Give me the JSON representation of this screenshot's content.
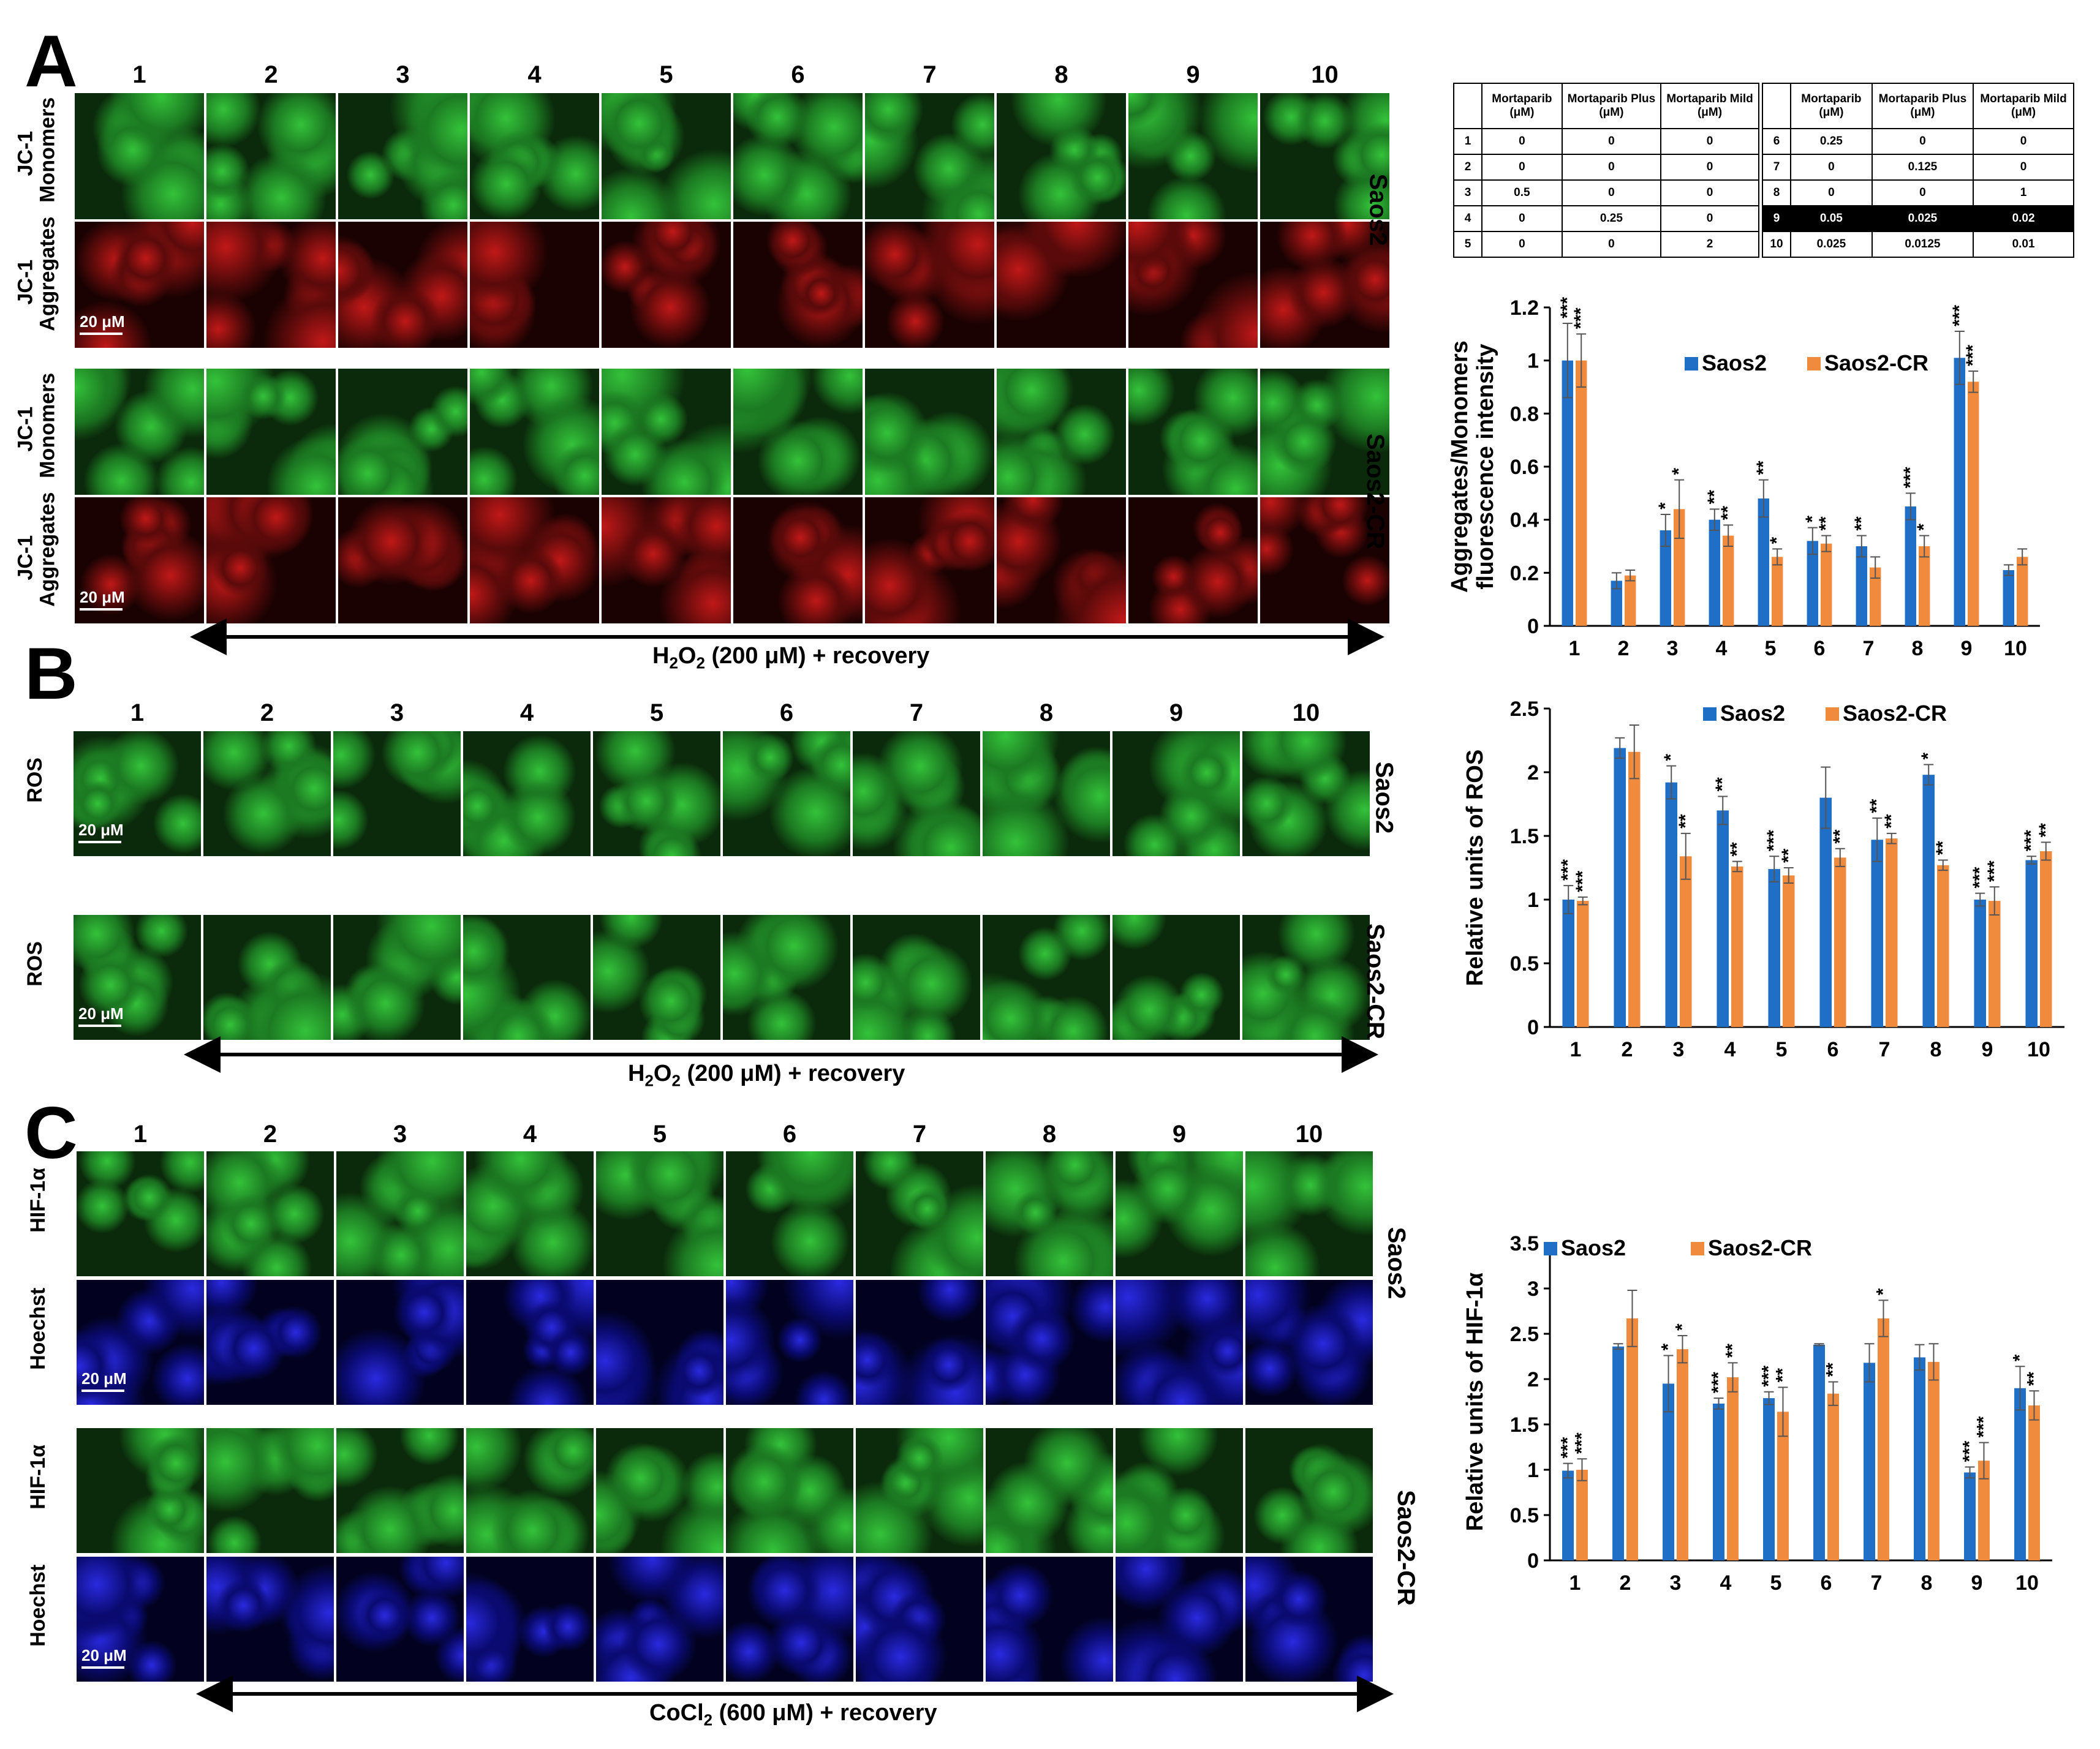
{
  "panels": {
    "A": {
      "letter": "A",
      "columns": [
        "1",
        "2",
        "3",
        "4",
        "5",
        "6",
        "7",
        "8",
        "9",
        "10"
      ],
      "rows": [
        {
          "label": "JC-1\nMonomers",
          "color": "green"
        },
        {
          "label": "JC-1\nAggregates",
          "color": "red"
        },
        {
          "label": "JC-1\nMonomers",
          "color": "green"
        },
        {
          "label": "JC-1\nAggregates",
          "color": "red"
        }
      ],
      "cell_lines": [
        "Saos2",
        "Saos2-CR"
      ],
      "scale_bar": "20 μM",
      "treatment": "H2O2 (200 μM) + recovery",
      "treatment_parts": {
        "pre": "H",
        "sub1": "2",
        "mid": "O",
        "sub2": "2",
        "post": " (200 μM) + recovery"
      }
    },
    "B": {
      "letter": "B",
      "columns": [
        "1",
        "2",
        "3",
        "4",
        "5",
        "6",
        "7",
        "8",
        "9",
        "10"
      ],
      "rows": [
        {
          "label": "ROS",
          "color": "green"
        },
        {
          "label": "ROS",
          "color": "green"
        }
      ],
      "cell_lines": [
        "Saos2",
        "Saos2-CR"
      ],
      "scale_bar": "20 μM",
      "treatment_parts": {
        "pre": "H",
        "sub1": "2",
        "mid": "O",
        "sub2": "2",
        "post": " (200 μM) + recovery"
      }
    },
    "C": {
      "letter": "C",
      "columns": [
        "1",
        "2",
        "3",
        "4",
        "5",
        "6",
        "7",
        "8",
        "9",
        "10"
      ],
      "rows": [
        {
          "label": "HIF-1α",
          "color": "green"
        },
        {
          "label": "Hoechst",
          "color": "blue"
        },
        {
          "label": "HIF-1α",
          "color": "green"
        },
        {
          "label": "Hoechst",
          "color": "blue"
        }
      ],
      "cell_lines": [
        "Saos2",
        "Saos2-CR"
      ],
      "scale_bar": "20 μM",
      "treatment_parts": {
        "pre": "CoCl",
        "sub1": "2",
        "post": " (600 μM) + recovery"
      }
    }
  },
  "treatment_table": {
    "headers": [
      "Mortaparib (μM)",
      "Mortaparib Plus (μM)",
      "Mortaparib Mild (μM)"
    ],
    "left": [
      [
        "1",
        "0",
        "0",
        "0"
      ],
      [
        "2",
        "0",
        "0",
        "0"
      ],
      [
        "3",
        "0.5",
        "0",
        "0"
      ],
      [
        "4",
        "0",
        "0.25",
        "0"
      ],
      [
        "5",
        "0",
        "0",
        "2"
      ]
    ],
    "right": [
      [
        "6",
        "0.25",
        "0",
        "0"
      ],
      [
        "7",
        "0",
        "0.125",
        "0"
      ],
      [
        "8",
        "0",
        "0",
        "1"
      ],
      [
        "9",
        "0.05",
        "0.025",
        "0.02"
      ],
      [
        "10",
        "0.025",
        "0.0125",
        "0.01"
      ]
    ],
    "highlight_row": "9"
  },
  "colors": {
    "saos2": "#1f6fc6",
    "saos2cr": "#f08a3c",
    "green": "#1f8f2a",
    "red": "#9a1010",
    "blue": "#1818b0"
  },
  "chart_data": [
    {
      "type": "bar",
      "ylabel": "Aggregates/Monomers fluorescence intensity",
      "categories": [
        "1",
        "2",
        "3",
        "4",
        "5",
        "6",
        "7",
        "8",
        "9",
        "10"
      ],
      "ylim": [
        0,
        1.2
      ],
      "yticks": [
        "0",
        "0.2",
        "0.4",
        "0.6",
        "0.8",
        "1",
        "1.2"
      ],
      "legend_position": "top-center",
      "series": [
        {
          "name": "Saos2",
          "values": [
            1.0,
            0.17,
            0.36,
            0.4,
            0.48,
            0.32,
            0.3,
            0.45,
            1.01,
            0.21
          ],
          "errors": [
            0.14,
            0.03,
            0.06,
            0.04,
            0.07,
            0.05,
            0.04,
            0.05,
            0.1,
            0.02
          ],
          "stars": [
            "***",
            "",
            "*",
            "**",
            "**",
            "*",
            "**",
            "***",
            "***",
            ""
          ]
        },
        {
          "name": "Saos2-CR",
          "values": [
            1.0,
            0.19,
            0.44,
            0.34,
            0.26,
            0.31,
            0.22,
            0.3,
            0.92,
            0.26
          ],
          "errors": [
            0.1,
            0.02,
            0.11,
            0.04,
            0.03,
            0.03,
            0.04,
            0.04,
            0.04,
            0.03
          ],
          "stars": [
            "***",
            "",
            "*",
            "**",
            "*",
            "**",
            "",
            "*",
            "***",
            ""
          ]
        }
      ]
    },
    {
      "type": "bar",
      "ylabel": "Relative units of ROS",
      "categories": [
        "1",
        "2",
        "3",
        "4",
        "5",
        "6",
        "7",
        "8",
        "9",
        "10"
      ],
      "ylim": [
        0,
        2.5
      ],
      "yticks": [
        "0",
        "0.5",
        "1",
        "1.5",
        "2",
        "2.5"
      ],
      "legend_position": "top-center",
      "series": [
        {
          "name": "Saos2",
          "values": [
            1.0,
            2.19,
            1.92,
            1.7,
            1.24,
            1.8,
            1.47,
            1.98,
            1.0,
            1.31
          ],
          "errors": [
            0.11,
            0.08,
            0.13,
            0.11,
            0.1,
            0.24,
            0.17,
            0.08,
            0.05,
            0.03
          ],
          "stars": [
            "***",
            "",
            "*",
            "**",
            "***",
            "",
            "**",
            "*",
            "***",
            "***"
          ]
        },
        {
          "name": "Saos2-CR",
          "values": [
            0.99,
            2.16,
            1.34,
            1.26,
            1.19,
            1.33,
            1.48,
            1.27,
            0.99,
            1.38
          ],
          "errors": [
            0.03,
            0.21,
            0.18,
            0.04,
            0.06,
            0.07,
            0.04,
            0.04,
            0.11,
            0.07
          ],
          "stars": [
            "***",
            "",
            "**",
            "**",
            "**",
            "**",
            "**",
            "**",
            "***",
            "**"
          ]
        }
      ]
    },
    {
      "type": "bar",
      "ylabel": "Relative units of HIF-1α",
      "categories": [
        "1",
        "2",
        "3",
        "4",
        "5",
        "6",
        "7",
        "8",
        "9",
        "10"
      ],
      "ylim": [
        0,
        3.5
      ],
      "yticks": [
        "0",
        "0.5",
        "1",
        "1.5",
        "2",
        "2.5",
        "3",
        "3.5"
      ],
      "legend_position": "top",
      "series": [
        {
          "name": "Saos2",
          "values": [
            0.99,
            2.36,
            1.95,
            1.73,
            1.79,
            2.38,
            2.18,
            2.24,
            0.97,
            1.9
          ],
          "errors": [
            0.08,
            0.03,
            0.31,
            0.06,
            0.07,
            0.01,
            0.21,
            0.14,
            0.06,
            0.24
          ],
          "stars": [
            "***",
            "",
            "*",
            "***",
            "***",
            "",
            "",
            "",
            "***",
            "*"
          ]
        },
        {
          "name": "Saos2-CR",
          "values": [
            1.0,
            2.67,
            2.33,
            2.02,
            1.64,
            1.84,
            2.67,
            2.19,
            1.1,
            1.71
          ],
          "errors": [
            0.12,
            0.31,
            0.15,
            0.16,
            0.27,
            0.13,
            0.2,
            0.2,
            0.2,
            0.16
          ],
          "stars": [
            "***",
            "",
            "*",
            "**",
            "**",
            "**",
            "*",
            "",
            "***",
            "**"
          ]
        }
      ]
    }
  ]
}
